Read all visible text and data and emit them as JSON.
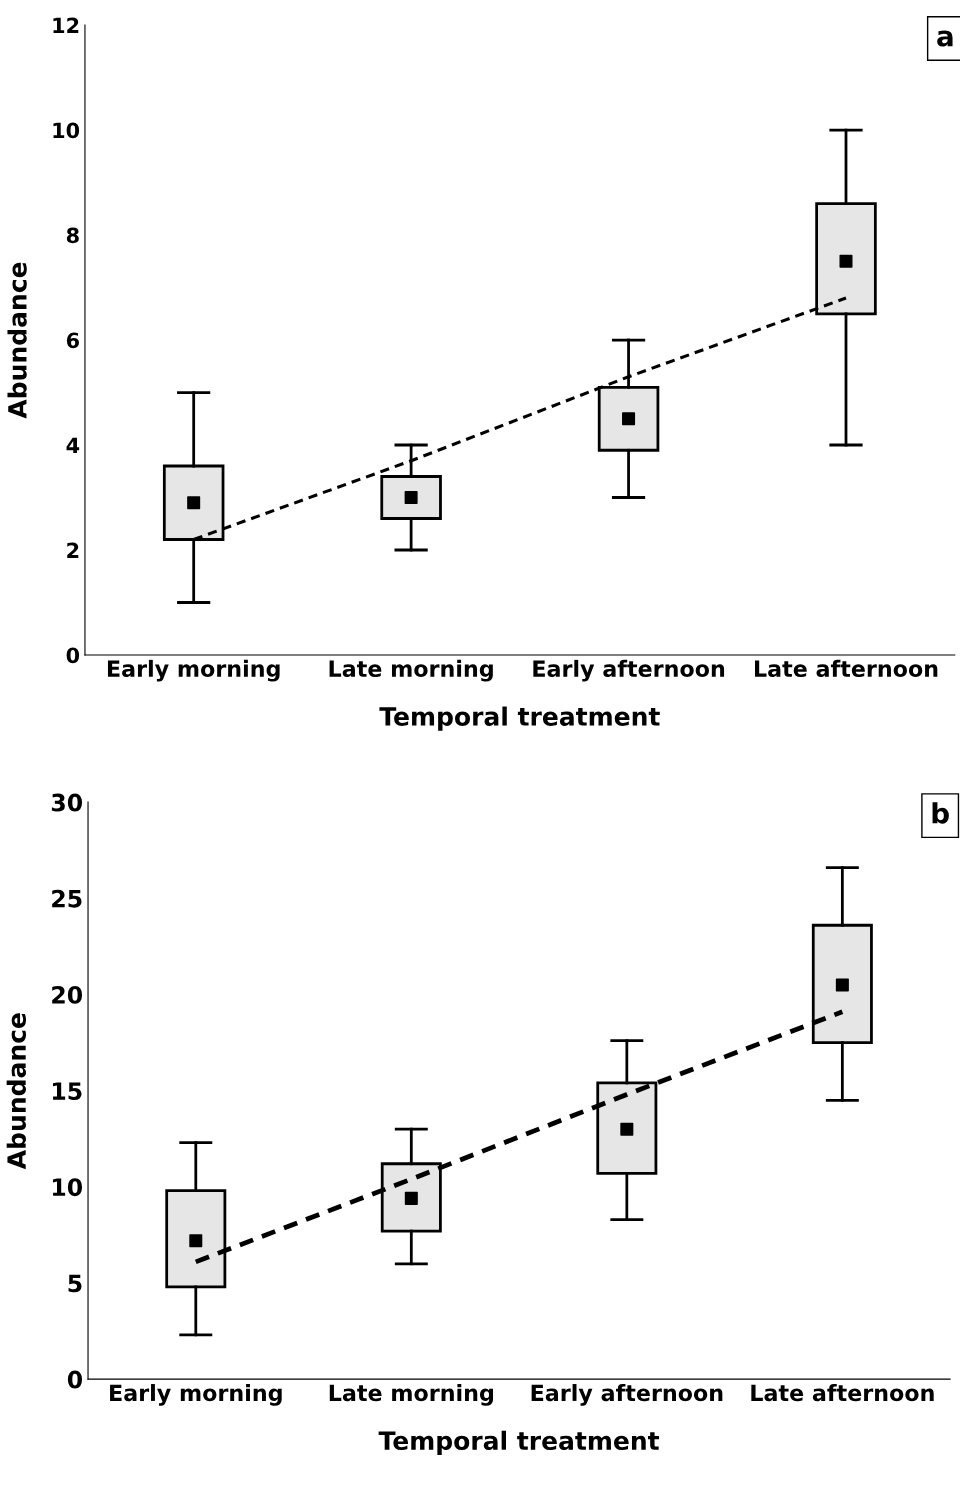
{
  "chart_data": [
    {
      "type": "box",
      "xlabel": "Temporal treatment",
      "ylabel": "Abundance",
      "annotations": [
        "a"
      ],
      "categories": [
        "Early morning",
        "Late morning",
        "Early afternoon",
        "Late afternoon"
      ],
      "boxes": [
        {
          "low": 1.0,
          "q1": 2.2,
          "median": 2.9,
          "q3": 3.6,
          "high": 5.0
        },
        {
          "low": 2.0,
          "q1": 2.6,
          "median": 3.0,
          "q3": 3.4,
          "high": 4.0
        },
        {
          "low": 3.0,
          "q1": 3.9,
          "median": 4.5,
          "q3": 5.1,
          "high": 6.0
        },
        {
          "low": 4.0,
          "q1": 6.5,
          "median": 7.5,
          "q3": 8.6,
          "high": 10.0
        }
      ],
      "color": "#e6e6e6",
      "series": [
        {
          "type": "line",
          "color": "#000000",
          "line_style": "dashed",
          "values": [
            2.2,
            3.7,
            5.3,
            6.8
          ]
        }
      ],
      "ylim": [
        0,
        12
      ],
      "yticks": [
        0,
        2,
        4,
        6,
        8,
        10,
        12
      ],
      "grid": false,
      "legend": false
    },
    {
      "type": "box",
      "xlabel": "Temporal treatment",
      "ylabel": "Abundance",
      "annotations": [
        "b"
      ],
      "categories": [
        "Early morning",
        "Late morning",
        "Early afternoon",
        "Late afternoon"
      ],
      "boxes": [
        {
          "low": 2.3,
          "q1": 4.8,
          "median": 7.2,
          "q3": 9.8,
          "high": 12.3
        },
        {
          "low": 6.0,
          "q1": 7.7,
          "median": 9.4,
          "q3": 11.2,
          "high": 13.0
        },
        {
          "low": 8.3,
          "q1": 10.7,
          "median": 13.0,
          "q3": 15.4,
          "high": 17.6
        },
        {
          "low": 14.5,
          "q1": 17.5,
          "median": 20.5,
          "q3": 23.6,
          "high": 26.6
        }
      ],
      "color": "#e6e6e6",
      "series": [
        {
          "type": "line",
          "color": "#000000",
          "line_style": "dashed",
          "values": [
            6.1,
            10.4,
            14.8,
            19.1
          ]
        }
      ],
      "ylim": [
        0,
        30
      ],
      "yticks": [
        0,
        5,
        10,
        15,
        20,
        25,
        30
      ],
      "grid": false,
      "legend": false
    }
  ]
}
